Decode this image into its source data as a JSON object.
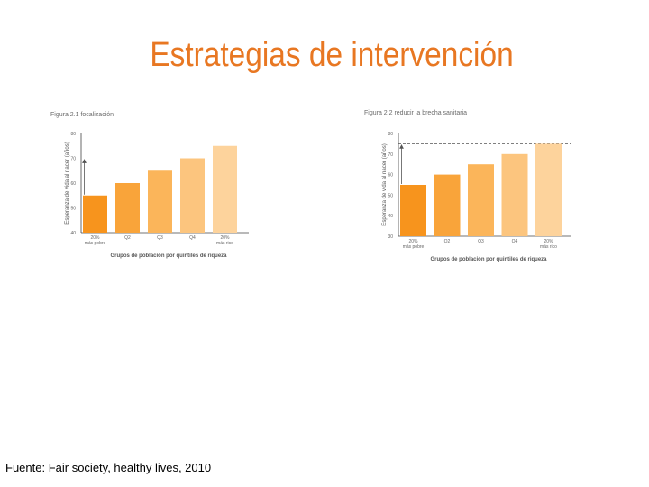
{
  "slide": {
    "title": "Estrategias de intervención",
    "source": "Fuente: Fair society, healthy lives, 2010"
  },
  "colors": {
    "title": "#e87722",
    "bars": [
      "#f7941d",
      "#f9a43a",
      "#fbb55a",
      "#fcc57e",
      "#fdd39c"
    ],
    "axis": "#444444",
    "gap_line": "#555555"
  },
  "chart_data": [
    {
      "type": "bar",
      "title": "Figura 2.1 focalización",
      "categories": [
        "20% más pobre",
        "Q2",
        "Q3",
        "Q4",
        "20% más rico"
      ],
      "category_lines": [
        [
          "20%",
          "más pobre"
        ],
        [
          "Q2"
        ],
        [
          "Q3"
        ],
        [
          "Q4"
        ],
        [
          "20%",
          "más rico"
        ]
      ],
      "values": [
        55,
        60,
        65,
        70,
        75
      ],
      "xlabel": "Grupos de población por quintiles de riqueza",
      "ylabel": "Esperanza de vida al nacer (años)",
      "ylim": [
        40,
        80
      ],
      "yticks": [
        40,
        50,
        60,
        70,
        80
      ],
      "annotation": "arrow raising the poorest quintile bar from 55 toward 70",
      "arrow_to": 70,
      "reference_line": null
    },
    {
      "type": "bar",
      "title": "Figura 2.2 reducir la brecha sanitaria",
      "categories": [
        "20% más pobre",
        "Q2",
        "Q3",
        "Q4",
        "20% más rico"
      ],
      "category_lines": [
        [
          "20%",
          "más pobre"
        ],
        [
          "Q2"
        ],
        [
          "Q3"
        ],
        [
          "Q4"
        ],
        [
          "20%",
          "más rico"
        ]
      ],
      "values": [
        55,
        60,
        65,
        70,
        75
      ],
      "xlabel": "Grupos de población por quintiles de riqueza",
      "ylabel": "Esperanza de vida al nacer (años)",
      "ylim": [
        30,
        80
      ],
      "yticks": [
        30,
        40,
        50,
        60,
        70,
        80
      ],
      "annotation": "arrow from poorest quintile up to the richest quintile level (dashed line)",
      "arrow_to": 75,
      "reference_line": 75
    }
  ]
}
